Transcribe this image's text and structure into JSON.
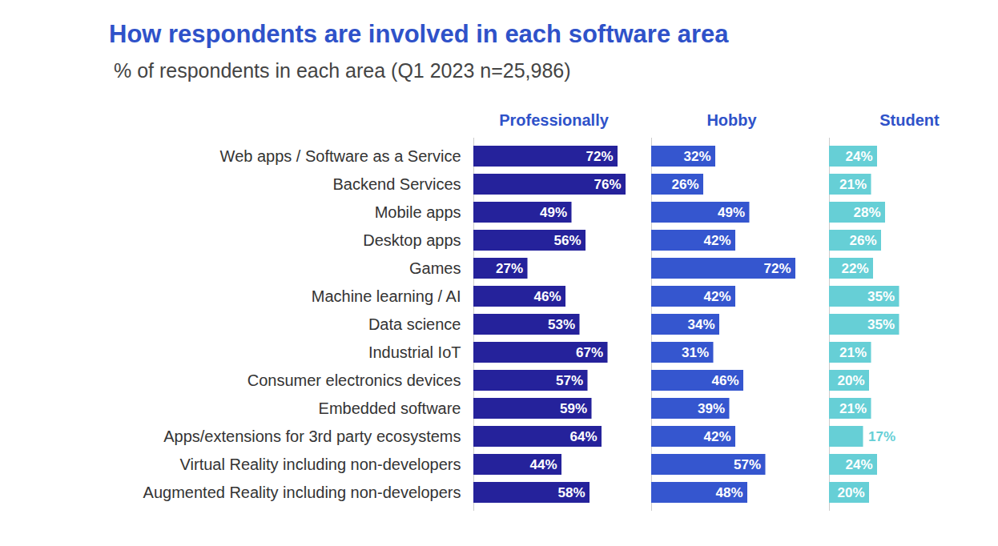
{
  "chart_data": {
    "type": "bar",
    "orientation": "horizontal",
    "title": "How respondents are involved in each software area",
    "subtitle": "% of respondents in each area (Q1 2023 n=25,986)",
    "categories": [
      "Web apps / Software as a Service",
      "Backend Services",
      "Mobile apps",
      "Desktop apps",
      "Games",
      "Machine learning / AI",
      "Data science",
      "Industrial IoT",
      "Consumer electronics devices",
      "Embedded software",
      "Apps/extensions for 3rd party ecosystems",
      "Virtual Reality including non-developers",
      "Augmented Reality including non-developers"
    ],
    "series": [
      {
        "name": "Professionally",
        "color": "#25229b",
        "values": [
          72,
          76,
          49,
          56,
          27,
          46,
          53,
          67,
          57,
          59,
          64,
          44,
          58
        ],
        "value_labels": [
          "72%",
          "76%",
          "49%",
          "56%",
          "27%",
          "46%",
          "53%",
          "67%",
          "57%",
          "59%",
          "64%",
          "44%",
          "58%"
        ]
      },
      {
        "name": "Hobby",
        "color": "#3556cf",
        "values": [
          32,
          26,
          49,
          42,
          72,
          42,
          34,
          31,
          46,
          39,
          42,
          57,
          48
        ],
        "value_labels": [
          "32%",
          "26%",
          "49%",
          "42%",
          "72%",
          "42%",
          "34%",
          "31%",
          "46%",
          "39%",
          "42%",
          "57%",
          "48%"
        ]
      },
      {
        "name": "Student",
        "color": "#66cfd6",
        "values": [
          24,
          21,
          28,
          26,
          22,
          35,
          35,
          21,
          20,
          21,
          17,
          24,
          20
        ],
        "value_labels": [
          "24%",
          "21%",
          "28%",
          "26%",
          "22%",
          "35%",
          "35%",
          "21%",
          "20%",
          "21%",
          "17%",
          "24%",
          "20%"
        ]
      }
    ],
    "xlim": [
      0,
      80
    ],
    "data_labels": true,
    "tick_labels": "y"
  }
}
